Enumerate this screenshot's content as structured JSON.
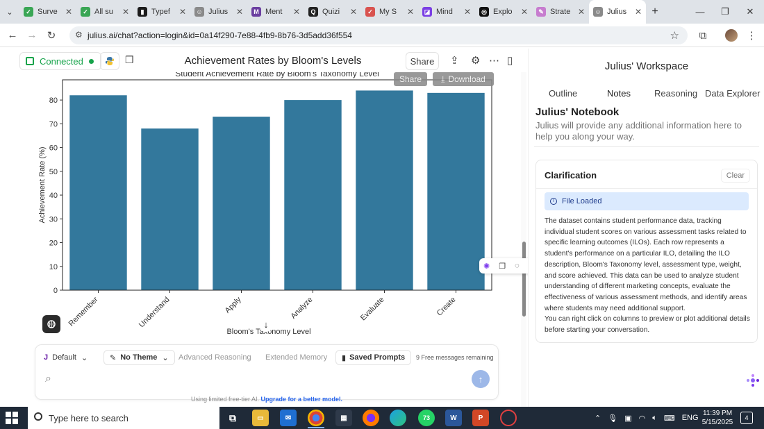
{
  "browser": {
    "tabs": [
      {
        "label": "Surve",
        "color": "#3aa655",
        "glyph": "✓"
      },
      {
        "label": "All su",
        "color": "#3aa655",
        "glyph": "✓"
      },
      {
        "label": "Typef",
        "color": "#1c1c1c",
        "glyph": "▮"
      },
      {
        "label": "Julius",
        "color": "#8a8a8a",
        "glyph": "☺"
      },
      {
        "label": "Ment",
        "color": "#6b3fa0",
        "glyph": "M"
      },
      {
        "label": "Quizi",
        "color": "#222222",
        "glyph": "Q"
      },
      {
        "label": "My S",
        "color": "#d9534f",
        "glyph": "✓"
      },
      {
        "label": "Mind",
        "color": "#7b3fe4",
        "glyph": "◪"
      },
      {
        "label": "Explo",
        "color": "#111111",
        "glyph": "◎"
      },
      {
        "label": "Strate",
        "color": "#c77dcf",
        "glyph": "✎"
      },
      {
        "label": "Julius",
        "color": "#8a8a8a",
        "glyph": "☺"
      }
    ],
    "active_tab_index": 10,
    "url": "julius.ai/chat?action=login&id=0a14f290-7e88-4fb9-8b76-3d5add36f554"
  },
  "header": {
    "connected_label": "Connected",
    "chat_title": "Achievement Rates by Bloom's Levels",
    "share_label": "Share"
  },
  "chart_overlay": {
    "share_label": "Share",
    "download_label": "Download"
  },
  "chart_data": {
    "type": "bar",
    "title": "Student Achievement Rate by Bloom's Taxonomy Level",
    "xlabel": "Bloom's Taxonomy Level",
    "ylabel": "Achievement Rate (%)",
    "categories": [
      "Remember",
      "Understand",
      "Apply",
      "Analyze",
      "Evaluate",
      "Create"
    ],
    "values": [
      82,
      68,
      73,
      80,
      84,
      83
    ],
    "ylim": [
      0,
      88.5
    ],
    "yticks": [
      0,
      10,
      20,
      30,
      40,
      50,
      60,
      70,
      80
    ],
    "bar_color": "#33789c",
    "grid": false
  },
  "composer": {
    "model_label": "Default",
    "theme_label": "No Theme",
    "advanced_reasoning_label": "Advanced Reasoning",
    "extended_memory_label": "Extended Memory",
    "saved_prompts_label": "Saved Prompts",
    "free_messages_label": "9 Free messages remaining",
    "footer_note": "Using limited free-tier AI.",
    "upgrade_link": "Upgrade for a better model."
  },
  "workspace": {
    "title": "Julius' Workspace",
    "tabs": [
      "Outline",
      "Notes",
      "Reasoning",
      "Data Explorer"
    ],
    "notebook_title": "Julius' Notebook",
    "notebook_subtitle": "Julius will provide any additional information here to help you along your way.",
    "clarification_title": "Clarification",
    "clear_label": "Clear",
    "file_loaded_label": "File Loaded",
    "clarification_text": "The dataset contains student performance data, tracking individual student scores on various assessment tasks related to specific learning outcomes (ILOs). Each row represents a student's performance on a particular ILO, detailing the ILO description, Bloom's Taxonomy level, assessment type, weight, and score achieved. This data can be used to analyze student understanding of different marketing concepts, evaluate the effectiveness of various assessment methods, and identify areas where students may need additional support.",
    "clarification_text_2": "You can right click on columns to preview or plot additional details before starting your conversation."
  },
  "taskbar": {
    "search_placeholder": "Type here to search",
    "whatsapp_badge": "73",
    "language": "ENG",
    "time": "11:39 PM",
    "date": "5/15/2025",
    "notification_count": "4"
  }
}
